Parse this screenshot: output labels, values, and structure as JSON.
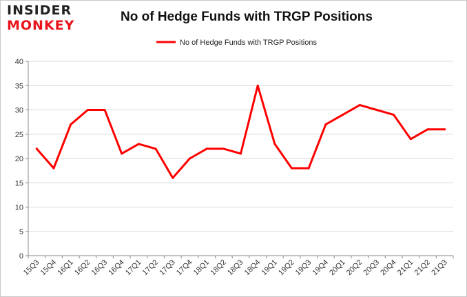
{
  "logo": {
    "line1": "INSIDER",
    "line2": "MONKEY"
  },
  "chart_data": {
    "type": "line",
    "title": "No of Hedge Funds with TRGP Positions",
    "xlabel": "",
    "ylabel": "",
    "ylim": [
      0,
      40
    ],
    "yticks": [
      0,
      5,
      10,
      15,
      20,
      25,
      30,
      35,
      40
    ],
    "grid": "horizontal",
    "legend_position": "top-center",
    "categories": [
      "15Q3",
      "15Q4",
      "16Q1",
      "16Q2",
      "16Q3",
      "16Q4",
      "17Q1",
      "17Q2",
      "17Q3",
      "17Q4",
      "18Q1",
      "18Q2",
      "18Q3",
      "18Q4",
      "19Q1",
      "19Q2",
      "19Q3",
      "19Q4",
      "20Q1",
      "20Q2",
      "20Q3",
      "20Q4",
      "21Q1",
      "21Q2",
      "21Q3"
    ],
    "series": [
      {
        "name": "No of Hedge Funds with TRGP Positions",
        "color": "#ff0000",
        "values": [
          22,
          18,
          27,
          30,
          30,
          21,
          23,
          22,
          16,
          20,
          22,
          22,
          21,
          35,
          23,
          18,
          18,
          27,
          29,
          31,
          30,
          29,
          24,
          26,
          26
        ]
      }
    ]
  },
  "colors": {
    "line": "#ff0000",
    "grid": "#d9d9d9",
    "axis": "#888888",
    "logo_dark": "#222222",
    "logo_red": "#e8141c"
  }
}
